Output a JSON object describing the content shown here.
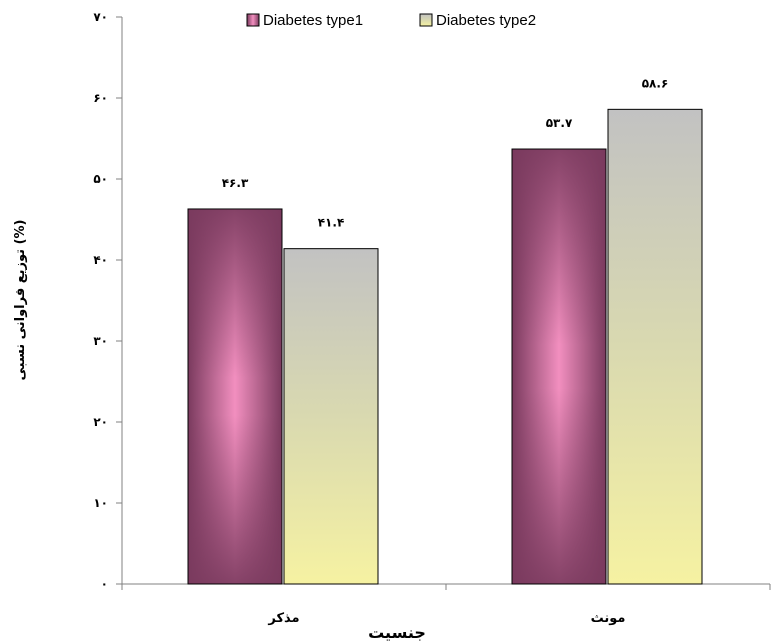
{
  "chart_data": {
    "type": "bar",
    "categories": [
      "مذکر",
      "مونث"
    ],
    "series": [
      {
        "name": "Diabetes type1",
        "values": [
          46.3,
          53.7
        ],
        "labels": [
          "۴۶.۳",
          "۵۳.۷"
        ],
        "color": "#8a3f66"
      },
      {
        "name": "Diabetes type2",
        "values": [
          41.4,
          58.6
        ],
        "labels": [
          "۴۱.۴",
          "۵۸.۶"
        ],
        "color": "#e9e8a4"
      }
    ],
    "title": "",
    "xlabel": "جنسیت",
    "ylabel": "توزیع فراوانی نسبی (%)",
    "ylim": [
      0,
      70
    ],
    "yticks": [
      0,
      10,
      20,
      30,
      40,
      50,
      60,
      70
    ],
    "ytick_labels": [
      "۰",
      "۱۰",
      "۲۰",
      "۳۰",
      "۴۰",
      "۵۰",
      "۶۰",
      "۷۰"
    ],
    "grid": false,
    "legend": "top-center"
  }
}
